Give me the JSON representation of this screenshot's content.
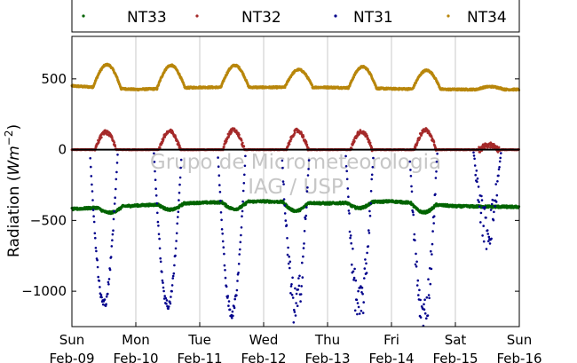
{
  "chart_data": {
    "type": "scatter",
    "ylabel_main": "Radiation (",
    "ylabel_math": "Wm",
    "ylabel_exp": "−2",
    "ylabel_close": ")",
    "ylim": [
      -1250,
      800
    ],
    "yticks": [
      500,
      0,
      -500,
      -1000
    ],
    "ytick_labels": [
      "500",
      "0",
      "−500",
      "−1000"
    ],
    "xlim": [
      0,
      7
    ],
    "xticks": [
      0,
      1,
      2,
      3,
      4,
      5,
      6,
      7
    ],
    "xtick_labels_day": [
      "Sun",
      "Mon",
      "Tue",
      "Wed",
      "Thu",
      "Fri",
      "Sat",
      "Sun"
    ],
    "xtick_labels_date": [
      "Feb-09",
      "Feb-10",
      "Feb-11",
      "Feb-12",
      "Feb-13",
      "Feb-14",
      "Feb-15",
      "Feb-16"
    ],
    "grid": "vertical",
    "zero_line": true,
    "legend_position": "top",
    "watermark": [
      "Grupo de Micrometeorologia",
      "IAG / USP"
    ],
    "series": [
      {
        "name": "NT33",
        "color": "#006400",
        "base": [
          -420,
          -395,
          -375,
          -365,
          -380,
          -365,
          -400,
          -405
        ],
        "day_offset": [
          -40,
          -40,
          -50,
          -60,
          -40,
          -60,
          0
        ],
        "day_peak": [
          0.6,
          0.55,
          0.55,
          0.5,
          0.5,
          0.5,
          0.5
        ]
      },
      {
        "name": "NT32",
        "color": "#a52a2a",
        "peak": [
          125,
          130,
          140,
          135,
          130,
          140,
          40
        ]
      },
      {
        "name": "NT31",
        "color": "#00008b",
        "min": [
          -1090,
          -1100,
          -1160,
          -1110,
          -1120,
          -1190,
          -560
        ]
      },
      {
        "name": "NT34",
        "color": "#b8860b",
        "base": [
          450,
          425,
          440,
          440,
          440,
          430,
          425,
          425
        ],
        "day_peak_value": [
          600,
          595,
          595,
          565,
          585,
          560,
          445
        ]
      }
    ]
  }
}
